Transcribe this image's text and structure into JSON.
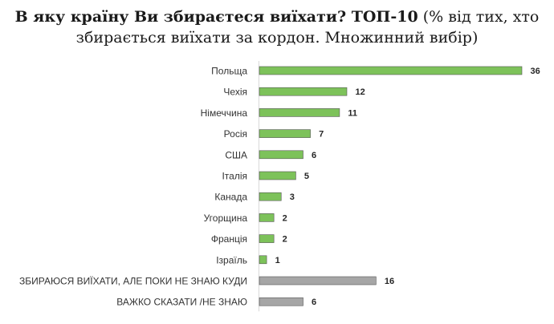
{
  "title": {
    "bold": "В яку країну Ви збираєтеся виїхати? ТОП-10",
    "rest_line1": " (% від тих, хто",
    "line2": "збирається виїхати за кордон. Множинний вибір)"
  },
  "chart_data": {
    "type": "bar",
    "orientation": "horizontal",
    "categories": [
      "Польща",
      "Чехія",
      "Німеччина",
      "Росія",
      "США",
      "Італія",
      "Канада",
      "Угорщина",
      "Франція",
      "Ізраїль",
      "ЗБИРАЮСЯ ВИЇХАТИ, АЛЕ ПОКИ НЕ ЗНАЮ КУДИ",
      "ВАЖКО СКАЗАТИ /НЕ ЗНАЮ"
    ],
    "values": [
      36,
      12,
      11,
      7,
      6,
      5,
      3,
      2,
      2,
      1,
      16,
      6
    ],
    "colors": [
      "#7dc25a",
      "#7dc25a",
      "#7dc25a",
      "#7dc25a",
      "#7dc25a",
      "#7dc25a",
      "#7dc25a",
      "#7dc25a",
      "#7dc25a",
      "#7dc25a",
      "#a6a6a6",
      "#a6a6a6"
    ],
    "xlim": [
      0,
      36
    ],
    "grid": false,
    "data_labels": true
  }
}
